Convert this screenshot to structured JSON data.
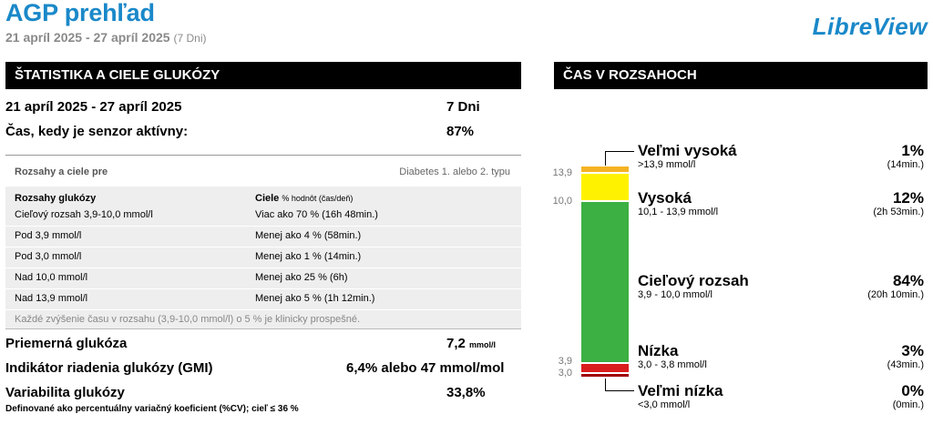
{
  "header": {
    "title": "AGP prehľad",
    "date_range": "21 apríl 2025 - 27 apríl 2025",
    "days_note": "(7 Dni)",
    "logo": "LibreView"
  },
  "stats": {
    "section_title": "ŠTATISTIKA A CIELE GLUKÓZY",
    "period_label": "21 apríl 2025 - 27 apríl 2025",
    "period_value": "7 Dni",
    "sensor_label": "Čas, kedy je senzor aktívny:",
    "sensor_value": "87%",
    "ranges_title": "Rozsahy a ciele pre",
    "ranges_type": "Diabetes 1. alebo 2. typu",
    "col1_header": "Rozsahy glukózy",
    "col2_header_bold": "Ciele",
    "col2_header_small": "% hodnôt (čas/deň)",
    "rows": [
      {
        "range": "Cieľový rozsah 3,9-10,0 mmol/l",
        "goal": "Viac ako 70 % (16h 48min.)"
      },
      {
        "range": "Pod 3,9 mmol/l",
        "goal": "Menej ako 4 % (58min.)"
      },
      {
        "range": "Pod 3,0 mmol/l",
        "goal": "Menej ako 1 % (14min.)"
      },
      {
        "range": "Nad 10,0 mmol/l",
        "goal": "Menej ako 25 % (6h)"
      },
      {
        "range": "Nad 13,9 mmol/l",
        "goal": "Menej ako 5 % (1h 12min.)"
      }
    ],
    "note": "Každé zvýšenie času v rozsahu (3,9-10,0 mmol/l) o 5 % je klinicky prospešné.",
    "mean_label": "Priemerná glukóza",
    "mean_value": "7,2",
    "mean_unit": "mmol/l",
    "gmi_label": "Indikátor riadenia glukózy (GMI)",
    "gmi_value": "6,4% alebo 47 mmol/mol",
    "cv_label": "Variabilita glukózy",
    "cv_value": "33,8%",
    "cv_footnote": "Definované ako percentuálny variačný koeficient (%CV); cieľ ≤ 36 %"
  },
  "tir": {
    "section_title": "ČAS V ROZSAHOCH",
    "ticks": {
      "t139": "13,9",
      "t100": "10,0",
      "t39": "3,9",
      "t30": "3,0"
    },
    "colors": {
      "very_high": "#f5b324",
      "high": "#fff200",
      "target": "#3cb043",
      "low": "#d91e1e",
      "very_low": "#a00000"
    },
    "items": {
      "very_high": {
        "label": "Veľmi vysoká",
        "sub": ">13,9 mmol/l",
        "pct": "1%",
        "dur": "(14min.)"
      },
      "high": {
        "label": "Vysoká",
        "sub": "10,1 - 13,9 mmol/l",
        "pct": "12%",
        "dur": "(2h 53min.)"
      },
      "target": {
        "label": "Cieľový rozsah",
        "sub": "3,9 - 10,0 mmol/l",
        "pct": "84%",
        "dur": "(20h 10min.)"
      },
      "low": {
        "label": "Nízka",
        "sub": "3,0 - 3,8 mmol/l",
        "pct": "3%",
        "dur": "(43min.)"
      },
      "very_low": {
        "label": "Veľmi nízka",
        "sub": "<3,0 mmol/l",
        "pct": "0%",
        "dur": "(0min.)"
      }
    }
  }
}
